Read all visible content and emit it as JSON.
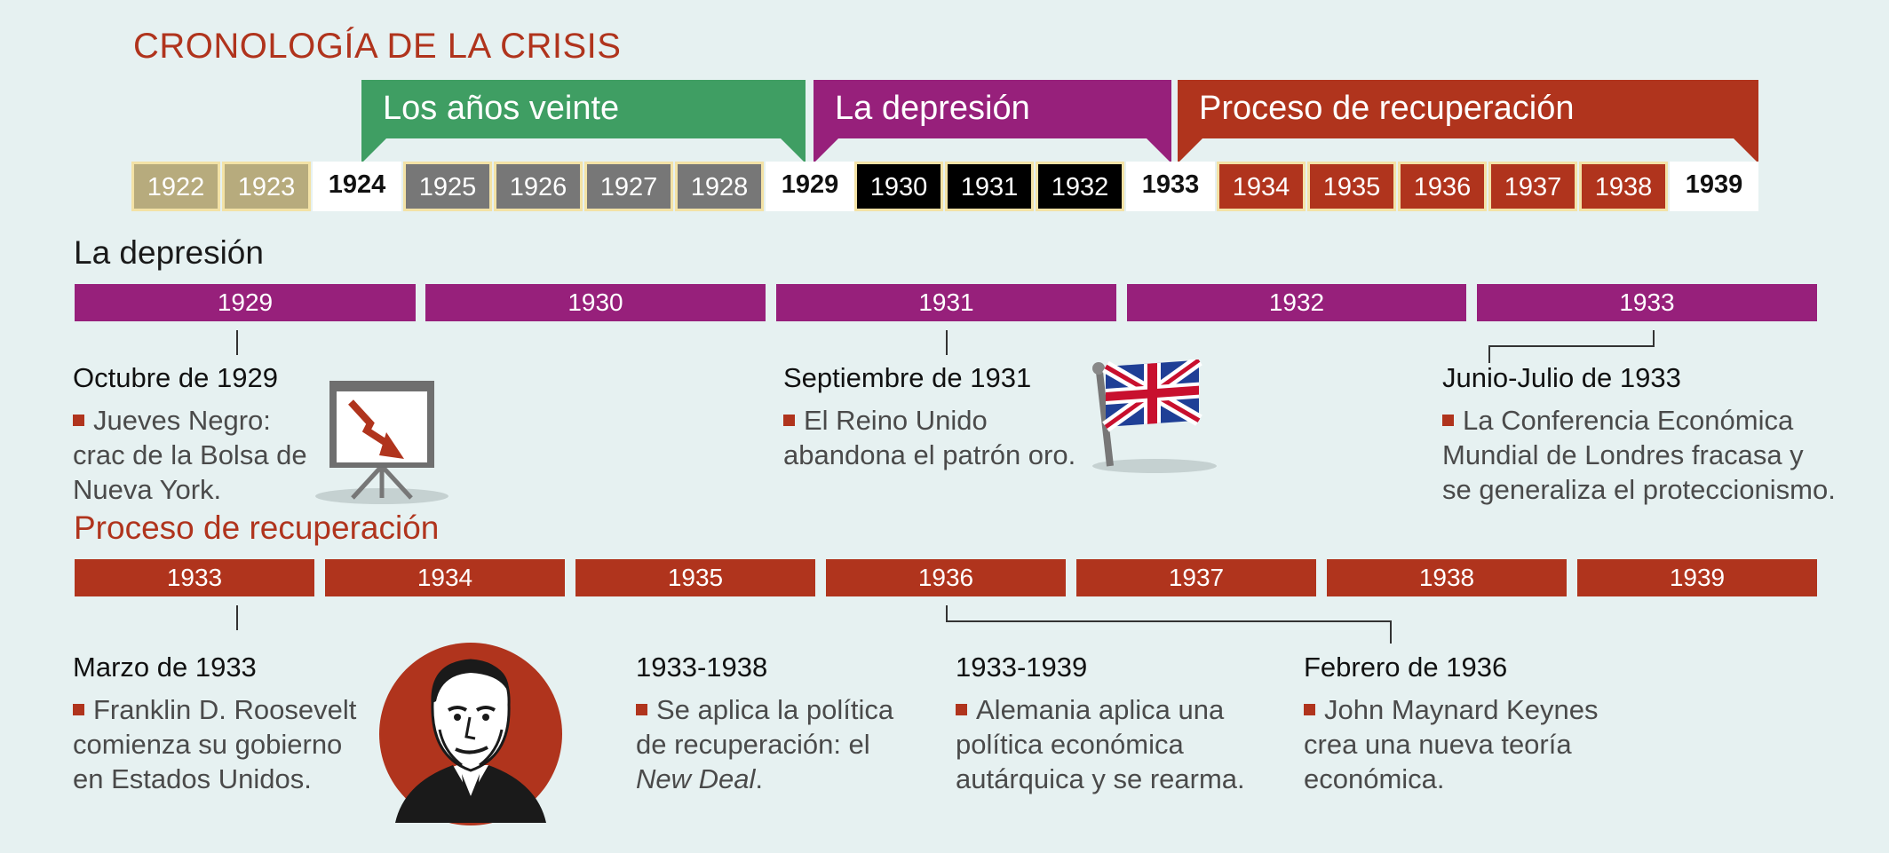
{
  "title": "CRONOLOGÍA DE LA CRISIS",
  "banners": {
    "veinte": "Los años veinte",
    "depresion": "La depresión",
    "recuperacion": "Proceso de recuperación"
  },
  "colors": {
    "green": "#3f9e63",
    "purple": "#97207b",
    "red": "#b0341d",
    "olive": "#b7ab7d",
    "gray": "#777777",
    "black": "#000000",
    "frame": "#f3e2a6"
  },
  "years_strip": [
    "1922",
    "1923",
    "1924",
    "1925",
    "1926",
    "1927",
    "1928",
    "1929",
    "1930",
    "1931",
    "1932",
    "1933",
    "1934",
    "1935",
    "1936",
    "1937",
    "1938",
    "1939"
  ],
  "depresion": {
    "heading": "La depresión",
    "bars": [
      "1929",
      "1930",
      "1931",
      "1932",
      "1933"
    ],
    "events": [
      {
        "date": "Octubre de 1929",
        "lines": [
          "Jueves Negro:",
          "crac de la Bolsa de",
          "Nueva York."
        ]
      },
      {
        "date": "Septiembre de 1931",
        "lines": [
          "El Reino Unido",
          "abandona el patrón oro."
        ]
      },
      {
        "date": "Junio-Julio de 1933",
        "lines": [
          "La Conferencia Económica",
          "Mundial de Londres fracasa y",
          "se generaliza el proteccionismo."
        ]
      }
    ]
  },
  "recuperacion": {
    "heading": "Proceso de recuperación",
    "bars": [
      "1933",
      "1934",
      "1935",
      "1936",
      "1937",
      "1938",
      "1939"
    ],
    "events": [
      {
        "date": "Marzo de 1933",
        "lines": [
          "Franklin D. Roosevelt",
          "comienza su gobierno",
          "en Estados Unidos."
        ]
      },
      {
        "date": "1933-1938",
        "lines": [
          "Se aplica la política",
          "de recuperación: el"
        ],
        "italic_line": "New Deal",
        "after_italic": "."
      },
      {
        "date": "1933-1939",
        "lines": [
          "Alemania aplica una",
          "política económica",
          "autárquica y se rearma."
        ]
      },
      {
        "date": "Febrero de 1936",
        "lines": [
          "John Maynard Keynes",
          "crea una nueva teoría",
          "económica."
        ]
      }
    ]
  },
  "icons": [
    "falling-chart-icon",
    "union-jack-flag-icon",
    "roosevelt-portrait-icon"
  ]
}
